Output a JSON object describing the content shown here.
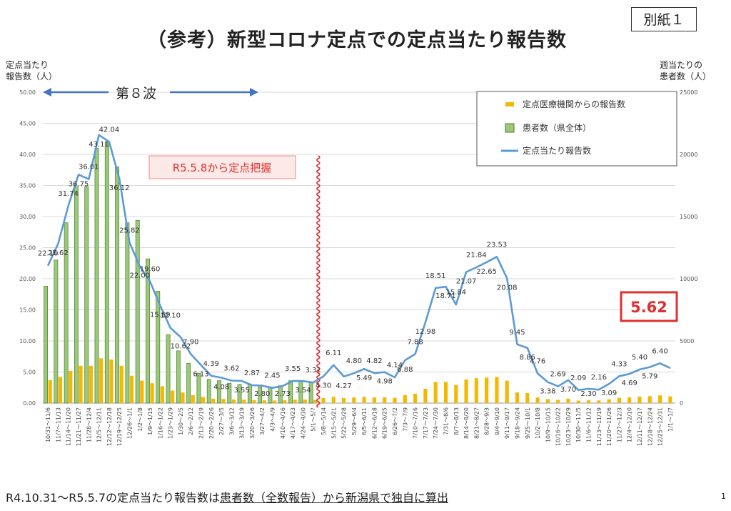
{
  "header": {
    "title": "（参考）新型コロナ定点での定点当たり報告数",
    "attachment": "別紙１"
  },
  "footer": {
    "note_prefix": "R4.10.31～R5.5.7の定点当たり報告数は",
    "note_underlined": "患者数（全数報告）から新潟県で独自に算出",
    "page_number": "1"
  },
  "annotations": {
    "wave": "第８波",
    "change_label": "R5.5.8から定点把握",
    "latest_value": "5.62"
  },
  "chart_data": {
    "type": "bar+line",
    "title": "（参考）新型コロナ定点での定点当たり報告数",
    "ylabel_left": "定点当たり\n報告数（人）",
    "ylabel_right": "週当たりの\n患者数（人）",
    "ylim_left": [
      0,
      50
    ],
    "ylim_right": [
      0,
      25000
    ],
    "yticks_left": [
      "0.00",
      "5.00",
      "10.00",
      "15.00",
      "20.00",
      "25.00",
      "30.00",
      "35.00",
      "40.00",
      "45.00",
      "50.00"
    ],
    "yticks_right": [
      "0",
      "5000",
      "10000",
      "15000",
      "20000",
      "25000"
    ],
    "legend": [
      "定点医療機関からの報告数",
      "患者数（県全体）",
      "定点当たり報告数"
    ],
    "legend_position": "top-right",
    "grid": true,
    "colors": {
      "patients": "#9bc97a",
      "clinics": "#f5b800",
      "line": "#5b9bd5",
      "accent": "#e03030"
    },
    "categories": [
      "10/31～11/6",
      "11/7～11/13",
      "11/14～11/20",
      "11/21～11/27",
      "11/28～12/4",
      "12/5～12/11",
      "12/12～12/18",
      "12/19～12/25",
      "12/26～1/1",
      "1/2～1/8",
      "1/9～1/15",
      "1/16～1/22",
      "1/23～1/29",
      "1/30～2/5",
      "2/6～2/12",
      "2/13～2/19",
      "2/20～2/26",
      "2/27～3/5",
      "3/6～3/12",
      "3/13～3/19",
      "3/20～3/26",
      "3/27～4/2",
      "4/3～4/9",
      "4/10～4/16",
      "4/17～4/23",
      "4/24～4/30",
      "5/1～5/7",
      "5/8～5/14",
      "5/15～5/21",
      "5/22～5/28",
      "5/29～6/4",
      "6/5～6/11",
      "6/12～6/18",
      "6/19～6/25",
      "6/26～7/2",
      "7/3～7/9",
      "7/10～7/16",
      "7/17～7/23",
      "7/24～7/30",
      "7/31～8/6",
      "8/7～8/13",
      "8/14～8/20",
      "8/21～8/27",
      "8/28～9/3",
      "9/4～9/10",
      "9/11～9/17",
      "9/18～9/24",
      "9/25～10/1",
      "10/2～10/8",
      "10/9～10/15",
      "10/16～10/22",
      "10/23～10/29",
      "10/30～11/5",
      "11/6～11/12",
      "11/13～11/19",
      "11/20～11/26",
      "11/27～12/3",
      "12/4～12/10",
      "12/11～12/17",
      "12/18～12/24",
      "12/25～12/31",
      "1/1～1/7"
    ],
    "rate_values": [
      22.1,
      25.62,
      31.74,
      36.75,
      36.01,
      43.11,
      42.04,
      36.12,
      25.82,
      22.0,
      19.6,
      15.69,
      12.1,
      10.62,
      7.9,
      6.13,
      4.39,
      4.08,
      3.62,
      3.55,
      2.87,
      2.8,
      2.45,
      2.73,
      3.55,
      3.54,
      3.31,
      4.3,
      6.11,
      4.27,
      4.8,
      5.49,
      4.82,
      4.98,
      4.14,
      6.88,
      7.88,
      12.98,
      18.51,
      18.71,
      15.84,
      21.07,
      21.84,
      22.65,
      23.53,
      20.08,
      9.45,
      8.86,
      4.76,
      3.38,
      2.69,
      3.7,
      2.09,
      2.3,
      2.16,
      3.09,
      4.33,
      4.69,
      5.4,
      5.79,
      6.4,
      5.62
    ],
    "rate_labels": [
      "22.10",
      "25.62",
      "31.74",
      "36.75",
      "36.01",
      "43.11",
      "42.04",
      "36.12",
      "25.82",
      "22.00",
      "19.60",
      "15.69",
      "12.10",
      "10.62",
      "7.90",
      "6.13",
      "4.39",
      "4.08",
      "3.62",
      "3.55",
      "2.87",
      "2.80",
      "2.45",
      "2.73",
      "3.55",
      "3.54",
      "3.31",
      "4.30",
      "6.11",
      "4.27",
      "4.80",
      "5.49",
      "4.82",
      "4.98",
      "4.14",
      "6.88",
      "7.88",
      "12.98",
      "18.51",
      "18.71",
      "15.84",
      "21.07",
      "21.84",
      "22.65",
      "23.53",
      "20.08",
      "9.45",
      "8.86",
      "4.76",
      "3.38",
      "2.69",
      "3.70",
      "2.09",
      "2.30",
      "2.16",
      "3.09",
      "4.33",
      "4.69",
      "5.40",
      "5.79",
      "6.40",
      ""
    ],
    "patients_values": [
      9400,
      11500,
      14500,
      17400,
      17400,
      20500,
      21000,
      19000,
      14500,
      14700,
      11600,
      9000,
      5500,
      4200,
      3200,
      2400,
      1900,
      1800,
      1600,
      1500,
      1500,
      1300,
      1300,
      1400,
      1800,
      1800,
      1700,
      null,
      null,
      null,
      null,
      null,
      null,
      null,
      null,
      null,
      null,
      null,
      null,
      null,
      null,
      null,
      null,
      null,
      null,
      null,
      null,
      null,
      null,
      null,
      null,
      null,
      null,
      null,
      null,
      null,
      null,
      null,
      null,
      null,
      null,
      null
    ],
    "clinic_values": [
      1850,
      2100,
      2600,
      3000,
      3000,
      3600,
      3500,
      3000,
      2200,
      1800,
      1600,
      1350,
      1000,
      850,
      630,
      490,
      350,
      330,
      290,
      280,
      230,
      220,
      200,
      220,
      280,
      280,
      270,
      400,
      500,
      400,
      450,
      500,
      450,
      470,
      420,
      650,
      750,
      1150,
      1700,
      1700,
      1450,
      1900,
      2000,
      2050,
      2100,
      1800,
      850,
      800,
      450,
      320,
      260,
      350,
      200,
      220,
      210,
      300,
      420,
      450,
      520,
      560,
      620,
      540
    ]
  }
}
